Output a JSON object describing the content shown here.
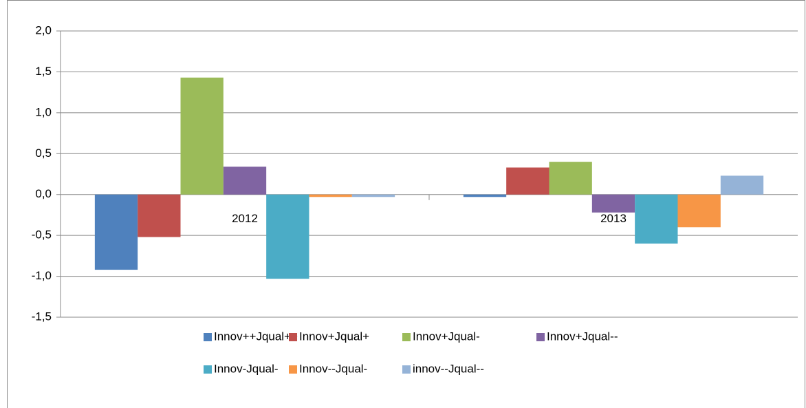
{
  "chart_data": {
    "type": "bar",
    "categories": [
      "2012",
      "2013"
    ],
    "series": [
      {
        "name": "Innov++Jqual++",
        "color": "#4F81BD",
        "values": [
          -0.92,
          -0.03
        ]
      },
      {
        "name": "Innov+Jqual+",
        "color": "#C0504D",
        "values": [
          -0.52,
          0.33
        ]
      },
      {
        "name": "Innov+Jqual-",
        "color": "#9BBB59",
        "values": [
          1.43,
          0.4
        ]
      },
      {
        "name": "Innov+Jqual--",
        "color": "#8064A2",
        "values": [
          0.34,
          -0.22
        ]
      },
      {
        "name": "Innov-Jqual-",
        "color": "#4BACC6",
        "values": [
          -1.03,
          -0.6
        ]
      },
      {
        "name": "Innov--Jqual-",
        "color": "#F79646",
        "values": [
          -0.03,
          -0.4
        ]
      },
      {
        "name": "innov--Jqual--",
        "color": "#95B3D7",
        "values": [
          -0.03,
          0.23
        ]
      }
    ],
    "ylim": [
      -1.5,
      2.0
    ],
    "yticks": [
      {
        "value": -1.5,
        "label": "-1,5"
      },
      {
        "value": -1.0,
        "label": "-1,0"
      },
      {
        "value": -0.5,
        "label": "-0,5"
      },
      {
        "value": 0.0,
        "label": "0,0"
      },
      {
        "value": 0.5,
        "label": "0,5"
      },
      {
        "value": 1.0,
        "label": "1,0"
      },
      {
        "value": 1.5,
        "label": "1,5"
      },
      {
        "value": 2.0,
        "label": "2,0"
      }
    ],
    "grid": true,
    "legend": "bottom"
  }
}
